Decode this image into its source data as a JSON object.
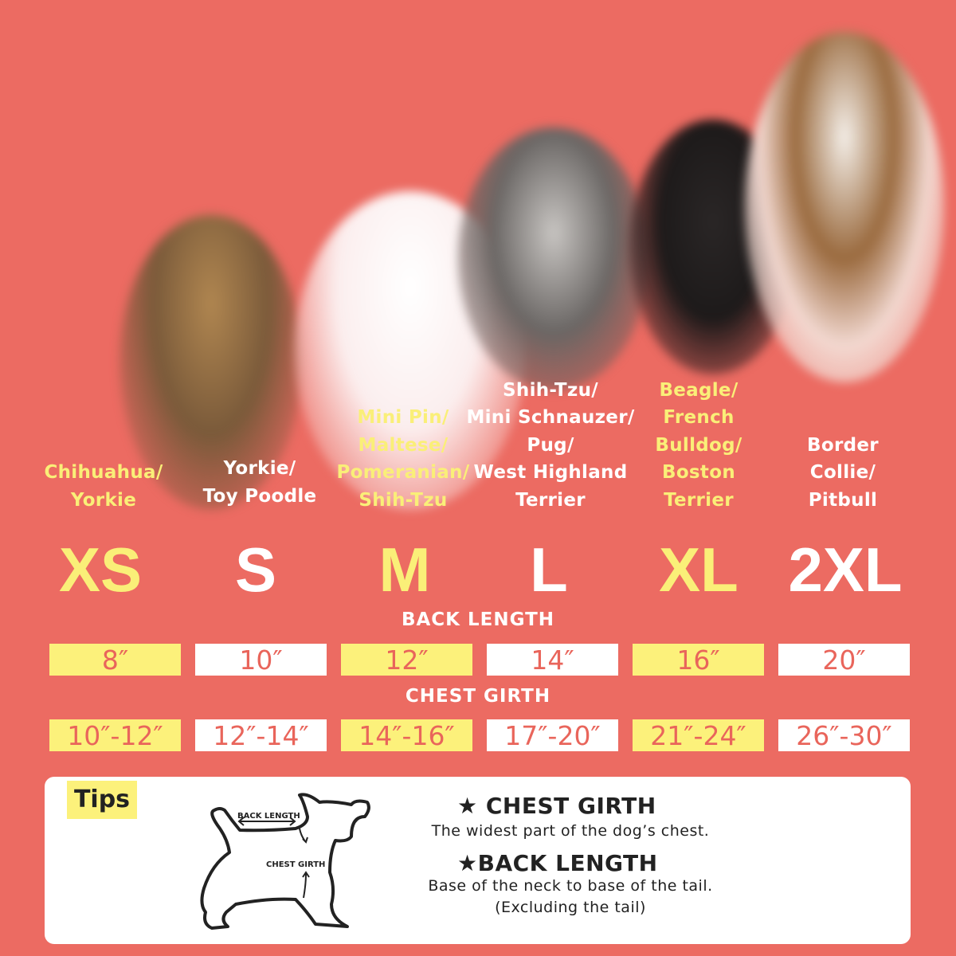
{
  "colors": {
    "background": "#EC6B62",
    "yellow": "#FCF17B",
    "white": "#FFFFFF",
    "value_text": "#E9655B"
  },
  "dogs": [
    "yorkie-photo",
    "bichon-photo",
    "schnauzer-photo",
    "french-bulldog-photo",
    "bulldog-photo"
  ],
  "sizes": [
    {
      "size": "XS",
      "breeds": [
        "Chihuahua/",
        "Yorkie"
      ],
      "back_length": "8″",
      "chest_girth": "10″-12″",
      "highlight": "yellow"
    },
    {
      "size": "S",
      "breeds": [
        "Yorkie/",
        "Toy Poodle"
      ],
      "back_length": "10″",
      "chest_girth": "12″-14″",
      "highlight": "white"
    },
    {
      "size": "M",
      "breeds": [
        "Mini Pin/",
        "Maltese/",
        "Pomeranian/",
        "Shih-Tzu"
      ],
      "back_length": "12″",
      "chest_girth": "14″-16″",
      "highlight": "yellow"
    },
    {
      "size": "L",
      "breeds": [
        "Shih-Tzu/",
        "Mini Schnauzer/",
        "Pug/",
        "West Highland",
        "Terrier"
      ],
      "back_length": "14″",
      "chest_girth": "17″-20″",
      "highlight": "white"
    },
    {
      "size": "XL",
      "breeds": [
        "Beagle/",
        "French",
        "Bulldog/",
        "Boston",
        "Terrier"
      ],
      "back_length": "16″",
      "chest_girth": "21″-24″",
      "highlight": "yellow"
    },
    {
      "size": "2XL",
      "breeds": [
        "Border",
        "Collie/",
        "Pitbull"
      ],
      "back_length": "20″",
      "chest_girth": "26″-30″",
      "highlight": "white"
    }
  ],
  "labels": {
    "back_length": "BACK LENGTH",
    "chest_girth": "CHEST GIRTH"
  },
  "tips": {
    "badge": "Tips",
    "diagram": {
      "back_length": "BACK LENGTH",
      "chest_girth": "CHEST GIRTH"
    },
    "chest_title": "CHEST GIRTH",
    "chest_desc": "The widest part of the dog’s chest.",
    "back_title": "BACK LENGTH",
    "back_desc": "Base of the neck to base of the tail.",
    "back_note": "(Excluding the tail)"
  }
}
